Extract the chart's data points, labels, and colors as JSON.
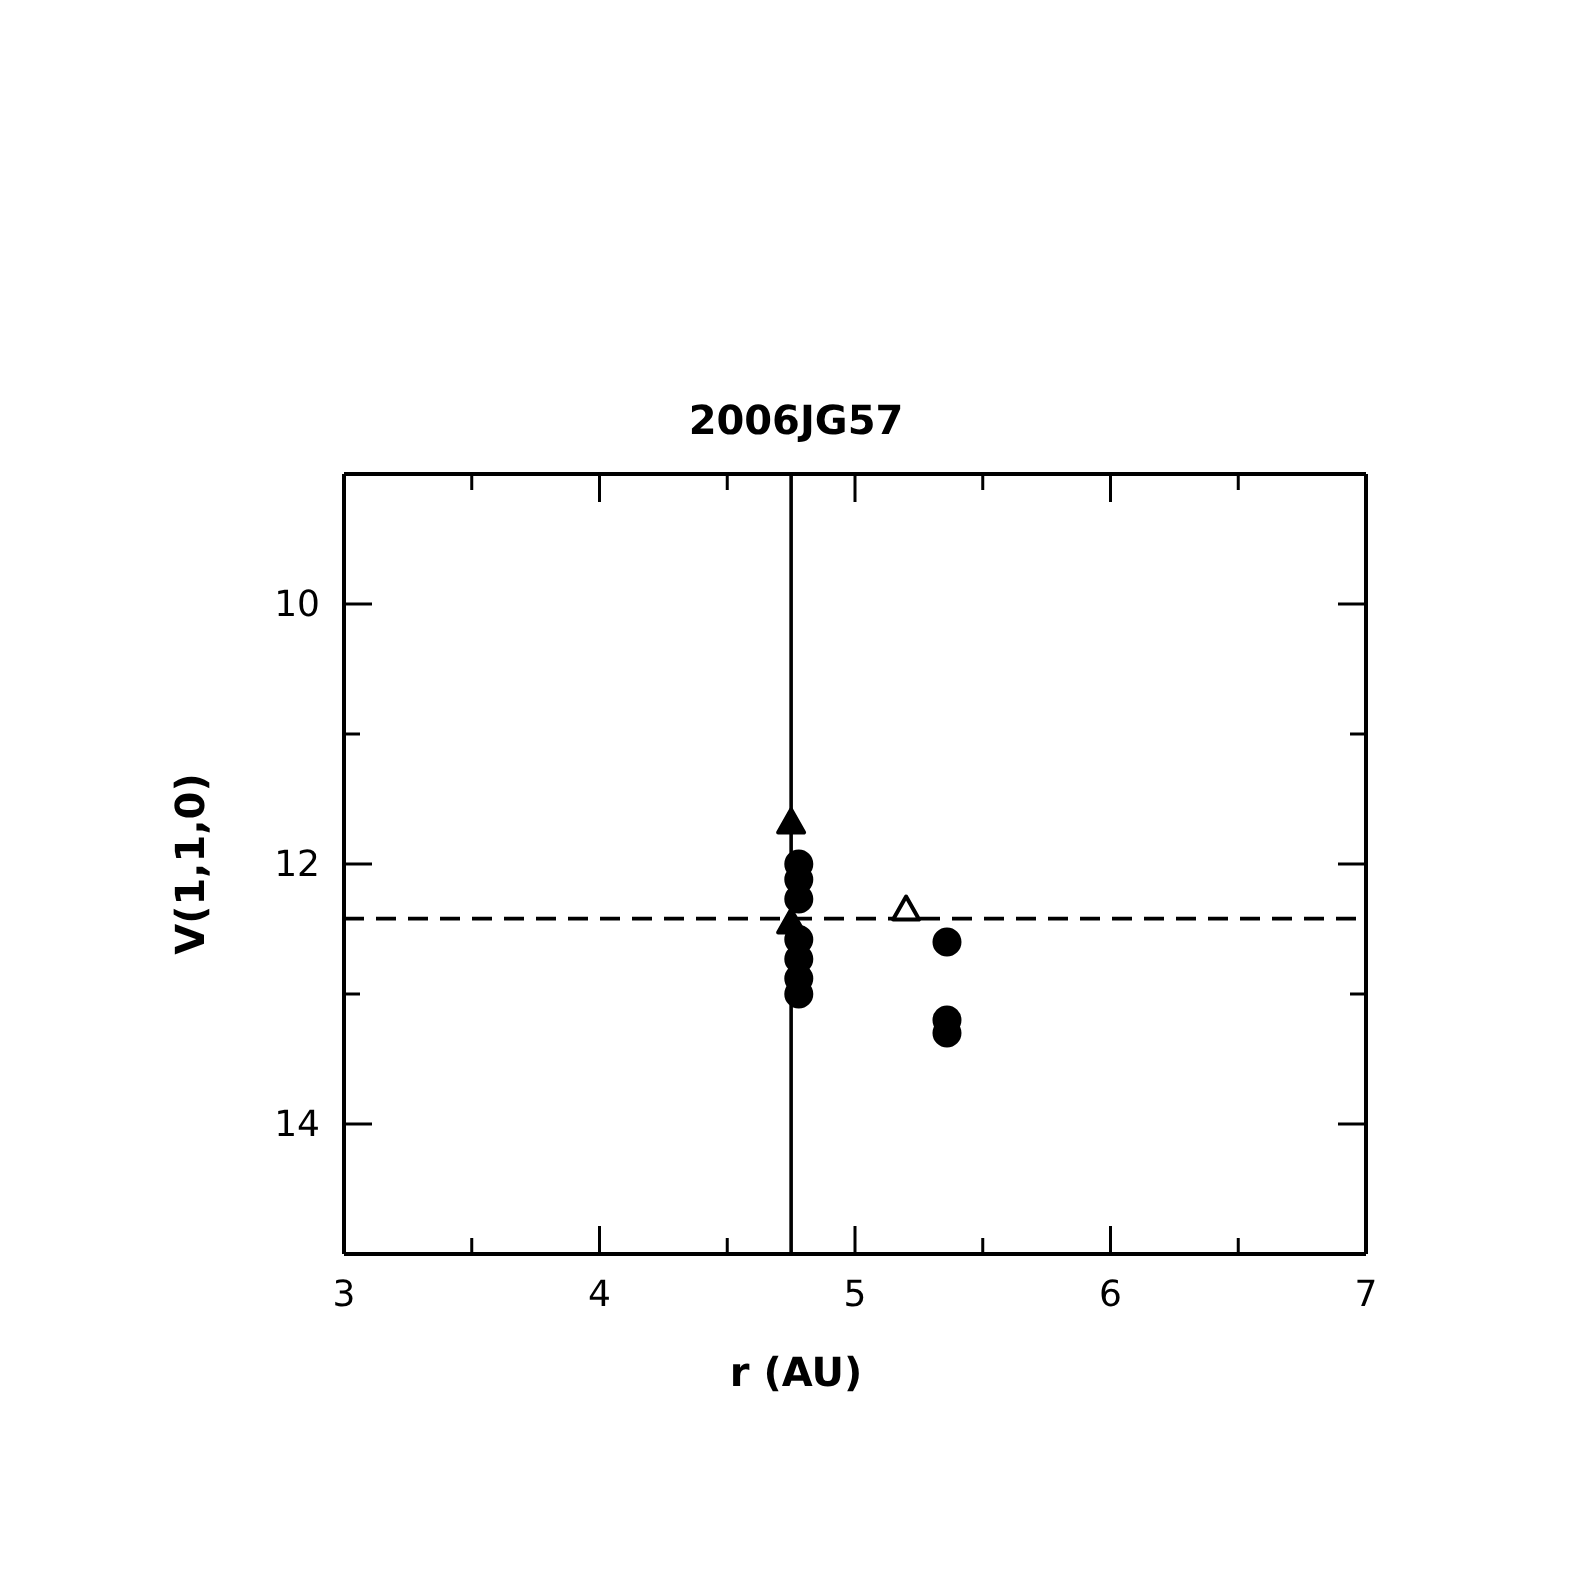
{
  "chart_data": {
    "type": "scatter",
    "title": "2006JG57",
    "xlabel": "r (AU)",
    "ylabel": "V(1,1,0)",
    "xlim": [
      3,
      7
    ],
    "xticks": [
      3,
      {
        "value": 3.5,
        "label": null
      },
      4,
      {
        "value": 4.5,
        "label": null
      },
      5,
      {
        "value": 5.5,
        "label": null
      },
      6,
      {
        "value": 6.5,
        "label": null
      },
      7
    ],
    "ylim": [
      15,
      9
    ],
    "yticks": [
      {
        "value": 9,
        "label": null
      },
      10,
      {
        "value": 11,
        "label": null
      },
      12,
      {
        "value": 13,
        "label": null
      },
      14,
      {
        "value": 15,
        "label": null
      }
    ],
    "grid": false,
    "legend": false,
    "ref_lines": [
      {
        "axis": "x",
        "value": 4.75,
        "label": null,
        "line_style": "solid"
      },
      {
        "axis": "y",
        "value": 12.42,
        "label": null,
        "line_style": "dashed"
      }
    ],
    "series": [
      {
        "color": "#000000",
        "marker": "triangle",
        "x": [
          4.75,
          4.75
        ],
        "values": [
          11.68,
          12.45
        ]
      },
      {
        "color": "#000000",
        "marker": "circle",
        "x": [
          4.78,
          4.78,
          4.78,
          4.78,
          4.78,
          4.78,
          4.78,
          5.36,
          5.36,
          5.36
        ],
        "values": [
          12.0,
          12.12,
          12.27,
          12.58,
          12.73,
          12.88,
          13.0,
          12.6,
          13.2,
          13.3
        ]
      },
      {
        "color": "#ffffff",
        "marker": "triangle",
        "x": [
          5.2
        ],
        "values": [
          12.35
        ]
      }
    ]
  }
}
